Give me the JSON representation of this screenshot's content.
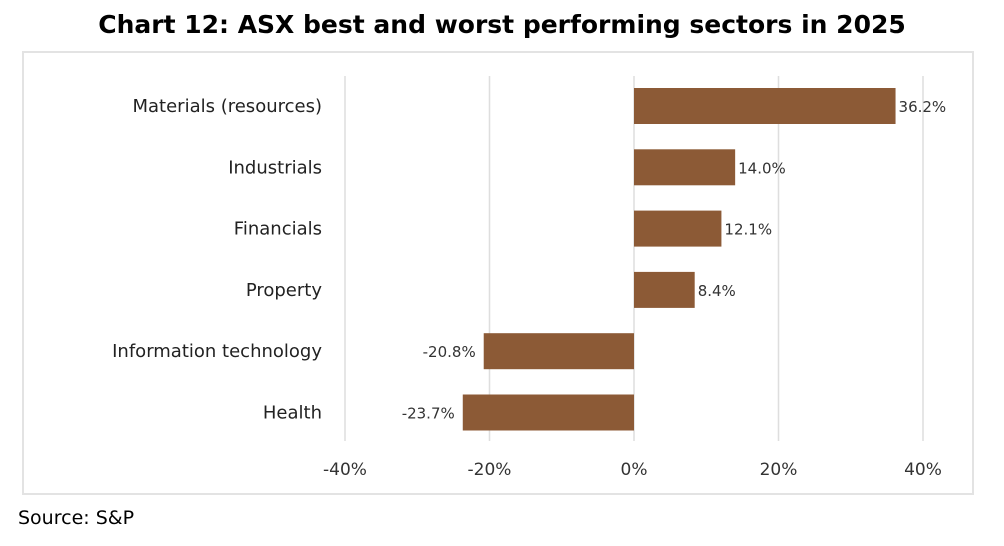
{
  "chart_data": {
    "type": "bar",
    "orientation": "horizontal",
    "title": "Chart 12: ASX best and worst performing sectors in 2025",
    "categories": [
      "Materials (resources)",
      "Industrials",
      "Financials",
      "Property",
      "Information technology",
      "Health"
    ],
    "values": [
      36.2,
      14.0,
      12.1,
      8.4,
      -20.8,
      -23.7
    ],
    "data_labels": [
      "36.2%",
      "14.0%",
      "12.1%",
      "8.4%",
      "-20.8%",
      "-23.7%"
    ],
    "xlim": [
      -40,
      40
    ],
    "xticks": [
      -40,
      -20,
      0,
      20,
      40
    ],
    "xtick_labels": [
      "-40%",
      "-20%",
      "0%",
      "20%",
      "40%"
    ],
    "xlabel": "",
    "ylabel": "",
    "grid": true,
    "legend": "none",
    "bar_color": "#8C5A36"
  },
  "source": "Source: S&P"
}
